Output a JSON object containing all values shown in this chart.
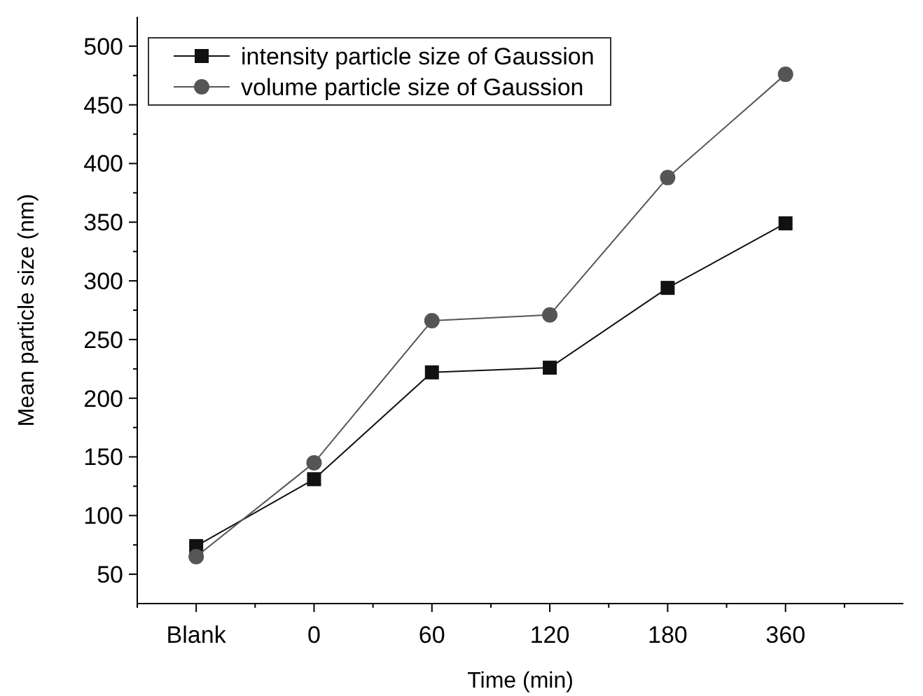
{
  "chart_data": {
    "type": "line",
    "xlabel": "Time (min)",
    "ylabel": "Mean particle size (nm)",
    "categories": [
      "Blank",
      "0",
      "60",
      "120",
      "180",
      "360"
    ],
    "series": [
      {
        "name": "intensity particle size of Gaussion",
        "color": "#111111",
        "marker": "square",
        "values": [
          74,
          131,
          222,
          226,
          294,
          349
        ]
      },
      {
        "name": "volume particle size of Gaussion",
        "color": "#555555",
        "marker": "circle",
        "values": [
          65,
          145,
          266,
          271,
          388,
          476
        ]
      }
    ],
    "ylim": [
      25,
      525
    ],
    "yticks": [
      50,
      {
        "value": 75,
        "label": null
      },
      100,
      {
        "value": 125,
        "label": null
      },
      150,
      {
        "value": 175,
        "label": null
      },
      200,
      {
        "value": 225,
        "label": null
      },
      250,
      {
        "value": 275,
        "label": null
      },
      300,
      {
        "value": 325,
        "label": null
      },
      350,
      {
        "value": 375,
        "label": null
      },
      400,
      {
        "value": 425,
        "label": null
      },
      450,
      {
        "value": 475,
        "label": null
      },
      500
    ],
    "grid": false,
    "legend": "top left"
  }
}
